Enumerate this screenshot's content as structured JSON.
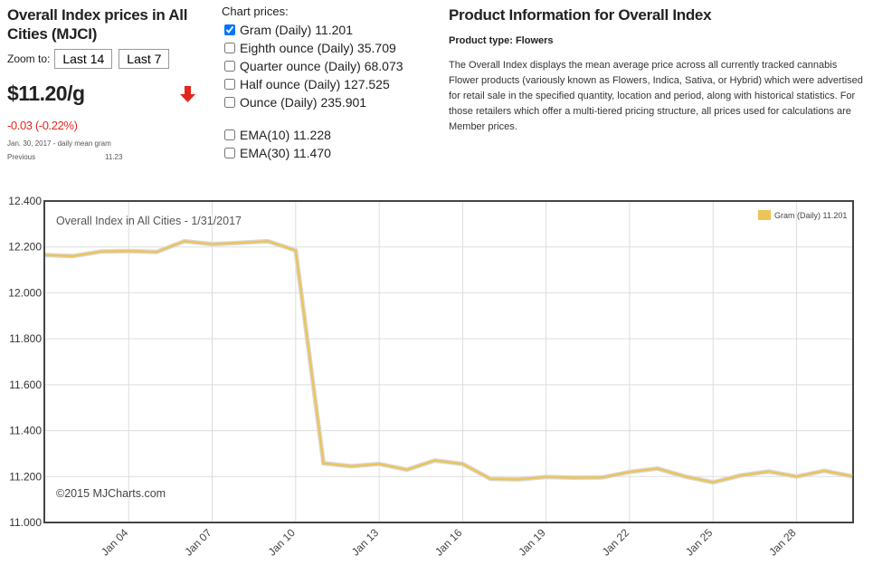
{
  "header": {
    "title": "Overall Index prices in All Cities (MJCI)",
    "zoom_label": "Zoom to:",
    "zoom_buttons": [
      "Last 14",
      "Last 7"
    ],
    "price": "$11.20/g",
    "change": "-0.03",
    "change_pct": "(-0.22%)",
    "date_note": "Jan. 30, 2017 - daily mean gram",
    "previous_label": "Previous",
    "previous_value": "11.23"
  },
  "chart_prices": {
    "label": "Chart prices:",
    "items": [
      {
        "text": "Gram (Daily) 11.201",
        "checked": true
      },
      {
        "text": "Eighth ounce (Daily) 35.709",
        "checked": false
      },
      {
        "text": "Quarter ounce (Daily) 68.073",
        "checked": false
      },
      {
        "text": "Half ounce (Daily) 127.525",
        "checked": false
      },
      {
        "text": "Ounce (Daily) 235.901",
        "checked": false
      }
    ],
    "ema": [
      {
        "text": "EMA(10) 11.228",
        "checked": false
      },
      {
        "text": "EMA(30) 11.470",
        "checked": false
      }
    ]
  },
  "product": {
    "title": "Product Information for Overall Index",
    "type": "Product type: Flowers",
    "description": "The Overall Index displays the mean average price across all currently tracked cannabis Flower products (variously known as Flowers, Indica, Sativa, or Hybrid) which were advertised for retail sale in the specified quantity, location and period, along with historical statistics. For those retailers which offer a multi-tiered pricing structure, all prices used for calculations are Member prices."
  },
  "chart_data": {
    "type": "line",
    "title": "Overall Index in All Cities - 1/31/2017",
    "credit": "©2015 MJCharts.com",
    "categories": [
      null,
      null,
      null,
      "Jan 04",
      null,
      null,
      "Jan 07",
      null,
      null,
      "Jan 10",
      null,
      null,
      "Jan 13",
      null,
      null,
      "Jan 16",
      null,
      null,
      "Jan 19",
      null,
      null,
      "Jan 22",
      null,
      null,
      "Jan 25",
      null,
      null,
      "Jan 28",
      null,
      null
    ],
    "series": [
      {
        "name": "Gram (Daily) 11.201",
        "color": "#ecc45a",
        "values": [
          12.165,
          12.16,
          12.18,
          12.182,
          12.178,
          12.225,
          12.212,
          12.218,
          12.225,
          12.185,
          11.258,
          11.245,
          11.255,
          11.23,
          11.27,
          11.255,
          11.19,
          11.188,
          11.198,
          11.195,
          11.196,
          11.22,
          11.235,
          11.2,
          11.175,
          11.205,
          11.222,
          11.2,
          11.225,
          11.201
        ]
      }
    ],
    "ylim": [
      11,
      12.4
    ],
    "yticks": [
      {
        "value": 11,
        "label": "11.000"
      },
      {
        "value": 11.2,
        "label": "11.200"
      },
      {
        "value": 11.4,
        "label": "11.400"
      },
      {
        "value": 11.6,
        "label": "11.600"
      },
      {
        "value": 11.8,
        "label": "11.800"
      },
      {
        "value": 12,
        "label": "12.000"
      },
      {
        "value": 12.2,
        "label": "12.200"
      },
      {
        "value": 12.4,
        "label": "12.400"
      }
    ],
    "grid": true,
    "legend": "top-right"
  }
}
